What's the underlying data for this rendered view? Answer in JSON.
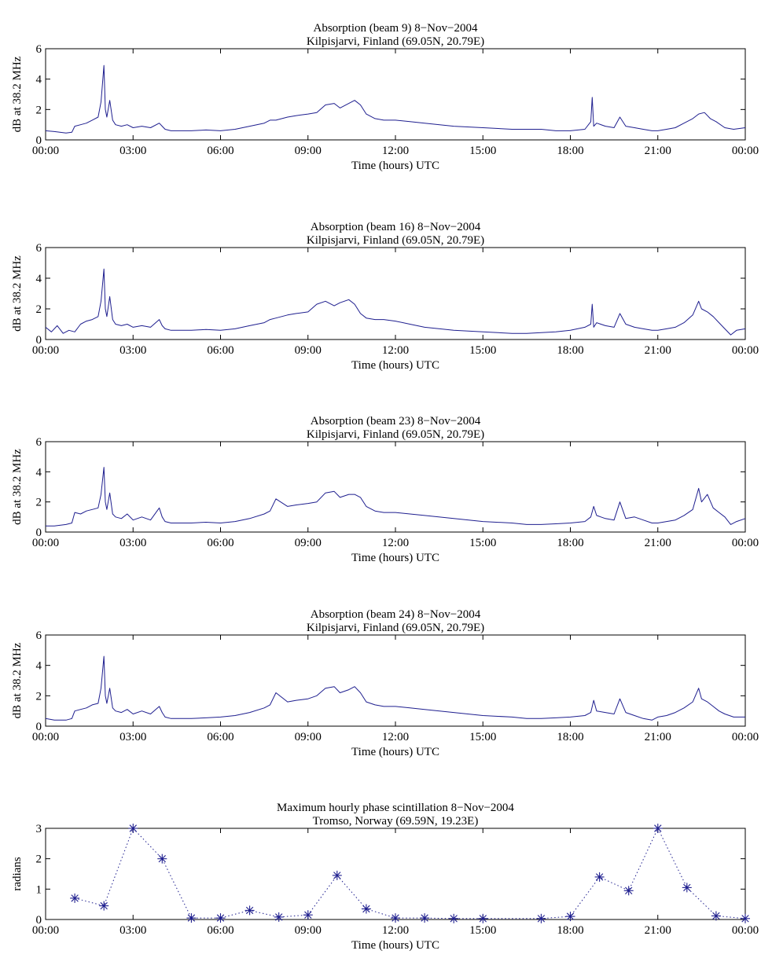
{
  "figure": {
    "line_color": "#1f1f8f",
    "axis_color": "#000000"
  },
  "chart_data": [
    {
      "type": "line",
      "title": "Absorption (beam 9) 8−Nov−2004",
      "subtitle": "Kilpisjarvi, Finland (69.05N, 20.79E)",
      "xlabel": "Time (hours) UTC",
      "ylabel": "dB at 38.2 MHz",
      "xlim": [
        0,
        24
      ],
      "ylim": [
        0,
        6
      ],
      "x_tick_labels": [
        "00:00",
        "03:00",
        "06:00",
        "09:00",
        "12:00",
        "15:00",
        "18:00",
        "21:00",
        "00:00"
      ],
      "y_tick_labels": [
        "0",
        "2",
        "4",
        "6"
      ],
      "grid": false,
      "series": [
        {
          "x": [
            0,
            0.3,
            0.7,
            0.9,
            1.0,
            1.2,
            1.4,
            1.6,
            1.8,
            1.9,
            2.0,
            2.05,
            2.1,
            2.2,
            2.3,
            2.4,
            2.6,
            2.8,
            3.0,
            3.3,
            3.6,
            3.9,
            4.0,
            4.1,
            4.3,
            4.6,
            5.0,
            5.5,
            6.0,
            6.5,
            7.0,
            7.5,
            7.7,
            7.9,
            8.3,
            8.6,
            9.0,
            9.3,
            9.6,
            9.9,
            10.1,
            10.4,
            10.6,
            10.8,
            11.0,
            11.3,
            11.6,
            12.0,
            12.5,
            13.0,
            14.0,
            15.0,
            16.0,
            17.0,
            17.5,
            18.0,
            18.5,
            18.7,
            18.75,
            18.8,
            18.9,
            19.2,
            19.5,
            19.7,
            19.9,
            20.2,
            20.5,
            20.8,
            21.0,
            21.3,
            21.6,
            21.9,
            22.2,
            22.4,
            22.6,
            22.8,
            23.0,
            23.3,
            23.6,
            24.0
          ],
          "y": [
            0.6,
            0.55,
            0.45,
            0.5,
            0.9,
            1.0,
            1.1,
            1.3,
            1.5,
            2.5,
            4.9,
            2.0,
            1.5,
            2.6,
            1.3,
            1.0,
            0.9,
            1.0,
            0.8,
            0.9,
            0.8,
            1.1,
            0.9,
            0.7,
            0.6,
            0.6,
            0.6,
            0.65,
            0.6,
            0.7,
            0.9,
            1.1,
            1.3,
            1.3,
            1.5,
            1.6,
            1.7,
            1.8,
            2.3,
            2.4,
            2.1,
            2.4,
            2.6,
            2.3,
            1.7,
            1.4,
            1.3,
            1.3,
            1.2,
            1.1,
            0.9,
            0.8,
            0.7,
            0.7,
            0.6,
            0.6,
            0.7,
            1.2,
            2.8,
            0.9,
            1.1,
            0.9,
            0.8,
            1.5,
            0.9,
            0.8,
            0.7,
            0.6,
            0.6,
            0.7,
            0.8,
            1.1,
            1.4,
            1.7,
            1.8,
            1.4,
            1.2,
            0.8,
            0.7,
            0.8
          ]
        }
      ]
    },
    {
      "type": "line",
      "title": "Absorption (beam 16) 8−Nov−2004",
      "subtitle": "Kilpisjarvi, Finland (69.05N, 20.79E)",
      "xlabel": "Time (hours) UTC",
      "ylabel": "dB at 38.2 MHz",
      "xlim": [
        0,
        24
      ],
      "ylim": [
        0,
        6
      ],
      "x_tick_labels": [
        "00:00",
        "03:00",
        "06:00",
        "09:00",
        "12:00",
        "15:00",
        "18:00",
        "21:00",
        "00:00"
      ],
      "y_tick_labels": [
        "0",
        "2",
        "4",
        "6"
      ],
      "grid": false,
      "series": [
        {
          "x": [
            0,
            0.2,
            0.4,
            0.6,
            0.8,
            1.0,
            1.2,
            1.4,
            1.6,
            1.8,
            1.9,
            2.0,
            2.05,
            2.1,
            2.2,
            2.3,
            2.4,
            2.6,
            2.8,
            3.0,
            3.3,
            3.6,
            3.9,
            4.0,
            4.1,
            4.3,
            4.6,
            5.0,
            5.5,
            6.0,
            6.5,
            7.0,
            7.5,
            7.7,
            7.9,
            8.3,
            8.6,
            9.0,
            9.3,
            9.6,
            9.9,
            10.1,
            10.4,
            10.6,
            10.8,
            11.0,
            11.3,
            11.6,
            12.0,
            12.5,
            13.0,
            14.0,
            15.0,
            16.0,
            16.5,
            17.0,
            17.5,
            18.0,
            18.5,
            18.7,
            18.75,
            18.8,
            18.9,
            19.2,
            19.5,
            19.7,
            19.9,
            20.2,
            20.5,
            20.8,
            21.0,
            21.3,
            21.6,
            21.9,
            22.2,
            22.4,
            22.5,
            22.7,
            22.9,
            23.1,
            23.3,
            23.5,
            23.7,
            24.0
          ],
          "y": [
            0.8,
            0.5,
            0.9,
            0.4,
            0.6,
            0.5,
            1.0,
            1.2,
            1.3,
            1.5,
            2.5,
            4.6,
            2.0,
            1.5,
            2.8,
            1.3,
            1.0,
            0.9,
            1.0,
            0.8,
            0.9,
            0.8,
            1.3,
            0.9,
            0.7,
            0.6,
            0.6,
            0.6,
            0.65,
            0.6,
            0.7,
            0.9,
            1.1,
            1.3,
            1.4,
            1.6,
            1.7,
            1.8,
            2.3,
            2.5,
            2.2,
            2.4,
            2.6,
            2.3,
            1.7,
            1.4,
            1.3,
            1.3,
            1.2,
            1.0,
            0.8,
            0.6,
            0.5,
            0.4,
            0.4,
            0.45,
            0.5,
            0.6,
            0.8,
            1.0,
            2.3,
            0.8,
            1.1,
            0.9,
            0.8,
            1.7,
            1.0,
            0.8,
            0.7,
            0.6,
            0.6,
            0.7,
            0.8,
            1.1,
            1.6,
            2.5,
            2.0,
            1.8,
            1.5,
            1.1,
            0.7,
            0.3,
            0.6,
            0.7
          ]
        }
      ]
    },
    {
      "type": "line",
      "title": "Absorption (beam 23) 8−Nov−2004",
      "subtitle": "Kilpisjarvi, Finland (69.05N, 20.79E)",
      "xlabel": "Time (hours) UTC",
      "ylabel": "dB at 38.2 MHz",
      "xlim": [
        0,
        24
      ],
      "ylim": [
        0,
        6
      ],
      "x_tick_labels": [
        "00:00",
        "03:00",
        "06:00",
        "09:00",
        "12:00",
        "15:00",
        "18:00",
        "21:00",
        "00:00"
      ],
      "y_tick_labels": [
        "0",
        "2",
        "4",
        "6"
      ],
      "grid": false,
      "series": [
        {
          "x": [
            0,
            0.3,
            0.7,
            0.9,
            1.0,
            1.2,
            1.4,
            1.6,
            1.8,
            1.9,
            2.0,
            2.05,
            2.1,
            2.2,
            2.3,
            2.4,
            2.6,
            2.8,
            3.0,
            3.3,
            3.6,
            3.9,
            4.0,
            4.1,
            4.3,
            4.6,
            5.0,
            5.5,
            6.0,
            6.5,
            7.0,
            7.5,
            7.7,
            7.9,
            8.3,
            8.6,
            9.0,
            9.3,
            9.6,
            9.9,
            10.1,
            10.4,
            10.6,
            10.8,
            11.0,
            11.3,
            11.6,
            12.0,
            12.5,
            13.0,
            14.0,
            15.0,
            16.0,
            16.5,
            17.0,
            17.5,
            18.0,
            18.5,
            18.7,
            18.8,
            18.9,
            19.2,
            19.5,
            19.7,
            19.9,
            20.2,
            20.5,
            20.8,
            21.0,
            21.3,
            21.6,
            21.9,
            22.2,
            22.4,
            22.5,
            22.7,
            22.9,
            23.1,
            23.3,
            23.5,
            23.7,
            24.0
          ],
          "y": [
            0.4,
            0.4,
            0.5,
            0.6,
            1.3,
            1.2,
            1.4,
            1.5,
            1.6,
            2.5,
            4.3,
            2.0,
            1.5,
            2.6,
            1.2,
            1.0,
            0.9,
            1.2,
            0.8,
            1.0,
            0.8,
            1.6,
            1.0,
            0.7,
            0.6,
            0.6,
            0.6,
            0.65,
            0.6,
            0.7,
            0.9,
            1.2,
            1.4,
            2.2,
            1.7,
            1.8,
            1.9,
            2.0,
            2.6,
            2.7,
            2.3,
            2.5,
            2.5,
            2.3,
            1.7,
            1.4,
            1.3,
            1.3,
            1.2,
            1.1,
            0.9,
            0.7,
            0.6,
            0.5,
            0.5,
            0.55,
            0.6,
            0.7,
            1.0,
            1.7,
            1.1,
            0.9,
            0.8,
            2.0,
            0.9,
            1.0,
            0.8,
            0.6,
            0.6,
            0.7,
            0.8,
            1.1,
            1.5,
            2.9,
            2.0,
            2.5,
            1.6,
            1.3,
            1.0,
            0.5,
            0.7,
            0.9
          ]
        }
      ]
    },
    {
      "type": "line",
      "title": "Absorption (beam 24) 8−Nov−2004",
      "subtitle": "Kilpisjarvi, Finland (69.05N, 20.79E)",
      "xlabel": "Time (hours) UTC",
      "ylabel": "dB at 38.2 MHz",
      "xlim": [
        0,
        24
      ],
      "ylim": [
        0,
        6
      ],
      "x_tick_labels": [
        "00:00",
        "03:00",
        "06:00",
        "09:00",
        "12:00",
        "15:00",
        "18:00",
        "21:00",
        "00:00"
      ],
      "y_tick_labels": [
        "0",
        "2",
        "4",
        "6"
      ],
      "grid": false,
      "series": [
        {
          "x": [
            0,
            0.3,
            0.7,
            0.9,
            1.0,
            1.2,
            1.4,
            1.6,
            1.8,
            1.9,
            2.0,
            2.05,
            2.1,
            2.2,
            2.3,
            2.4,
            2.6,
            2.8,
            3.0,
            3.3,
            3.6,
            3.9,
            4.0,
            4.1,
            4.3,
            4.6,
            5.0,
            5.5,
            6.0,
            6.5,
            7.0,
            7.5,
            7.7,
            7.9,
            8.3,
            8.6,
            9.0,
            9.3,
            9.6,
            9.9,
            10.1,
            10.4,
            10.6,
            10.8,
            11.0,
            11.3,
            11.6,
            12.0,
            12.5,
            13.0,
            14.0,
            15.0,
            16.0,
            16.5,
            17.0,
            17.5,
            18.0,
            18.5,
            18.7,
            18.8,
            18.9,
            19.2,
            19.5,
            19.7,
            19.9,
            20.2,
            20.5,
            20.8,
            21.0,
            21.3,
            21.6,
            21.9,
            22.2,
            22.4,
            22.5,
            22.7,
            22.9,
            23.1,
            23.3,
            23.6,
            24.0
          ],
          "y": [
            0.5,
            0.4,
            0.4,
            0.5,
            1.0,
            1.1,
            1.2,
            1.4,
            1.5,
            2.5,
            4.6,
            2.0,
            1.5,
            2.5,
            1.2,
            1.0,
            0.9,
            1.1,
            0.8,
            1.0,
            0.8,
            1.3,
            0.9,
            0.6,
            0.5,
            0.5,
            0.5,
            0.55,
            0.6,
            0.7,
            0.9,
            1.2,
            1.4,
            2.2,
            1.6,
            1.7,
            1.8,
            2.0,
            2.5,
            2.6,
            2.2,
            2.4,
            2.6,
            2.2,
            1.6,
            1.4,
            1.3,
            1.3,
            1.2,
            1.1,
            0.9,
            0.7,
            0.6,
            0.5,
            0.5,
            0.55,
            0.6,
            0.7,
            0.9,
            1.7,
            1.0,
            0.9,
            0.8,
            1.8,
            0.9,
            0.7,
            0.5,
            0.4,
            0.6,
            0.7,
            0.9,
            1.2,
            1.6,
            2.5,
            1.8,
            1.6,
            1.3,
            1.0,
            0.8,
            0.6,
            0.6
          ]
        }
      ]
    },
    {
      "type": "scatter",
      "title": "Maximum hourly phase scintillation 8−Nov−2004",
      "subtitle": "Tromso, Norway (69.59N, 19.23E)",
      "xlabel": "Time (hours) UTC",
      "ylabel": "radians",
      "xlim": [
        0,
        24
      ],
      "ylim": [
        0,
        3
      ],
      "x_tick_labels": [
        "00:00",
        "03:00",
        "06:00",
        "09:00",
        "12:00",
        "15:00",
        "18:00",
        "21:00",
        "00:00"
      ],
      "y_tick_labels": [
        "0",
        "1",
        "2",
        "3"
      ],
      "grid": false,
      "marker": "asterisk",
      "line_style": "dotted",
      "series": [
        {
          "x": [
            1,
            2,
            3,
            4,
            5,
            6,
            7,
            8,
            9,
            10,
            11,
            12,
            13,
            14,
            15,
            17,
            18,
            19,
            20,
            21,
            22,
            23,
            24
          ],
          "y": [
            0.7,
            0.45,
            3.0,
            2.0,
            0.05,
            0.05,
            0.3,
            0.08,
            0.15,
            1.45,
            0.35,
            0.05,
            0.05,
            0.03,
            0.03,
            0.03,
            0.1,
            1.4,
            0.95,
            3.0,
            1.05,
            0.12,
            0.03
          ]
        }
      ]
    }
  ]
}
